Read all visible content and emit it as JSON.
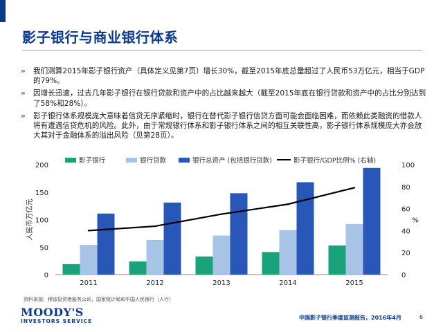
{
  "header": {
    "title": "影子银行与商业银行体系"
  },
  "bullets": [
    {
      "marker": "»",
      "text": "我们测算2015年影子银行资产（具体定义见第7页）增长30%，截至2015年底总量超过了人民币53万亿元，相当于GDP的79%。"
    },
    {
      "marker": "»",
      "text": "因增长迅速，过去几年影子银行在银行贷款和资产中的占比越来越大（截至2015年底在银行贷款和资产中的占比分别达到了58%和28%）。"
    },
    {
      "marker": "»",
      "text": "影子银行体系规模庞大意味着信贷无序紧缩时，银行在替代影子银行信贷方面可能会面临困难，而依赖此类融资的借款人将有遭遇信贷危机的风险。此外，由于常规银行体系和影子银行体系之间的相互关联性高，影子银行体系规模庞大亦会放大其对于金融体系的溢出风险（见第28页）。"
    }
  ],
  "colors": {
    "accent": "#0b3a8c",
    "shadow": "#1aa37a",
    "loans": "#a7c3e6",
    "assets": "#2957b8",
    "ratio": "#000000"
  },
  "chart_data": {
    "type": "bar",
    "categories": [
      "2011",
      "2012",
      "2013",
      "2014",
      "2015"
    ],
    "series": [
      {
        "name": "影子银行",
        "values": [
          19,
          24,
          33,
          41,
          53
        ]
      },
      {
        "name": "银行贷款",
        "values": [
          54,
          63,
          71,
          81,
          92
        ]
      },
      {
        "name": "银行总资产 (包括银行贷款)",
        "values": [
          111,
          131,
          148,
          168,
          194
        ]
      }
    ],
    "line_series": {
      "name": "影子银行/GDP比例% (右轴)",
      "values": [
        40,
        44,
        55,
        64,
        79
      ],
      "axis": "right"
    },
    "ylabel": "人民币万亿元",
    "ylim": [
      0,
      200
    ],
    "yticks": [
      "0",
      "50",
      "100",
      "150",
      "200"
    ],
    "y2label": "%",
    "y2lim": [
      0,
      100
    ],
    "y2ticks": [
      "0",
      "20",
      "40",
      "60",
      "80",
      "100"
    ]
  },
  "footer": {
    "source": "资料来源：穆迪投资者服务公司，国家统计局和中国人民银行（人行）",
    "logo_brand": "MOODY'S",
    "logo_sub": "INVESTORS SERVICE",
    "report": "中国影子银行季度监测报告，2016年4月",
    "page": "6"
  }
}
